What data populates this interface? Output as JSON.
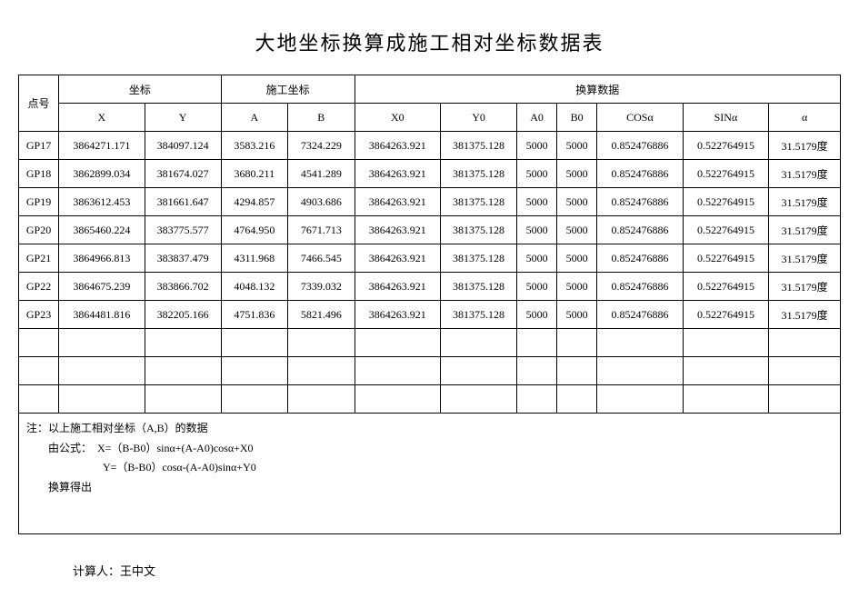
{
  "title": "大地坐标换算成施工相对坐标数据表",
  "table": {
    "group_headers": {
      "id": "点号",
      "coord": "坐标",
      "constr": "施工坐标",
      "conv": "换算数据"
    },
    "col_headers": [
      "X",
      "Y",
      "A",
      "B",
      "X0",
      "Y0",
      "A0",
      "B0",
      "COSα",
      "SINα",
      "α"
    ],
    "rows": [
      {
        "id": "GP17",
        "X": "3864271.171",
        "Y": "384097.124",
        "A": "3583.216",
        "B": "7324.229",
        "X0": "3864263.921",
        "Y0": "381375.128",
        "A0": "5000",
        "B0": "5000",
        "COS": "0.852476886",
        "SIN": "0.522764915",
        "alpha": "31.5179度"
      },
      {
        "id": "GP18",
        "X": "3862899.034",
        "Y": "381674.027",
        "A": "3680.211",
        "B": "4541.289",
        "X0": "3864263.921",
        "Y0": "381375.128",
        "A0": "5000",
        "B0": "5000",
        "COS": "0.852476886",
        "SIN": "0.522764915",
        "alpha": "31.5179度"
      },
      {
        "id": "GP19",
        "X": "3863612.453",
        "Y": "381661.647",
        "A": "4294.857",
        "B": "4903.686",
        "X0": "3864263.921",
        "Y0": "381375.128",
        "A0": "5000",
        "B0": "5000",
        "COS": "0.852476886",
        "SIN": "0.522764915",
        "alpha": "31.5179度"
      },
      {
        "id": "GP20",
        "X": "3865460.224",
        "Y": "383775.577",
        "A": "4764.950",
        "B": "7671.713",
        "X0": "3864263.921",
        "Y0": "381375.128",
        "A0": "5000",
        "B0": "5000",
        "COS": "0.852476886",
        "SIN": "0.522764915",
        "alpha": "31.5179度"
      },
      {
        "id": "GP21",
        "X": "3864966.813",
        "Y": "383837.479",
        "A": "4311.968",
        "B": "7466.545",
        "X0": "3864263.921",
        "Y0": "381375.128",
        "A0": "5000",
        "B0": "5000",
        "COS": "0.852476886",
        "SIN": "0.522764915",
        "alpha": "31.5179度"
      },
      {
        "id": "GP22",
        "X": "3864675.239",
        "Y": "383866.702",
        "A": "4048.132",
        "B": "7339.032",
        "X0": "3864263.921",
        "Y0": "381375.128",
        "A0": "5000",
        "B0": "5000",
        "COS": "0.852476886",
        "SIN": "0.522764915",
        "alpha": "31.5179度"
      },
      {
        "id": "GP23",
        "X": "3864481.816",
        "Y": "382205.166",
        "A": "4751.836",
        "B": "5821.496",
        "X0": "3864263.921",
        "Y0": "381375.128",
        "A0": "5000",
        "B0": "5000",
        "COS": "0.852476886",
        "SIN": "0.522764915",
        "alpha": "31.5179度"
      }
    ],
    "empty_rows": 3
  },
  "notes": {
    "line1": "注：以上施工相对坐标（A,B）的数据",
    "line2": "　　由公式：　X=（B-B0）sinα+(A-A0)cosα+X0",
    "line3": "　　　　　　　Y=（B-B0）cosα-(A-A0)sinα+Y0",
    "line4": "　　换算得出"
  },
  "footer": {
    "label": "计算人：",
    "name": "王中文"
  }
}
